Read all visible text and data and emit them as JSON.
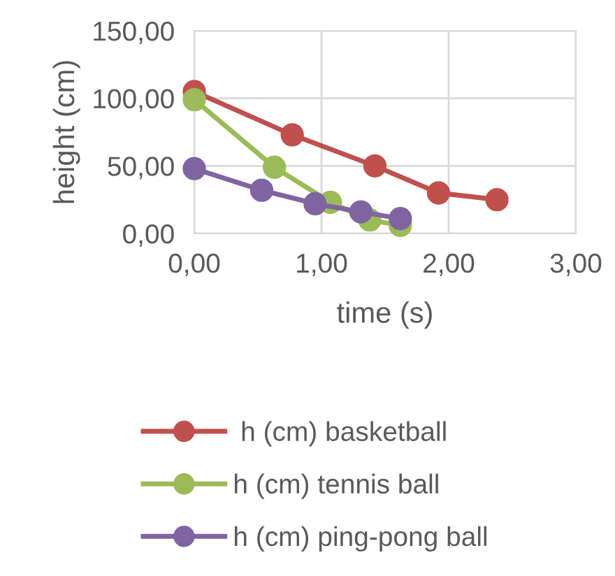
{
  "chart_data": {
    "type": "line",
    "xlabel": "time (s)",
    "ylabel": "height (cm)",
    "xlim": [
      0,
      3
    ],
    "xticks": [
      {
        "value": 0,
        "label": "0,00"
      },
      {
        "value": 1,
        "label": "1,00"
      },
      {
        "value": 2,
        "label": "2,00"
      },
      {
        "value": 3,
        "label": "3,00"
      }
    ],
    "ylim": [
      0,
      150
    ],
    "yticks": [
      {
        "value": 0,
        "label": "0,00"
      },
      {
        "value": 50,
        "label": "50,00"
      },
      {
        "value": 100,
        "label": "100,00"
      },
      {
        "value": 150,
        "label": "150,00"
      }
    ],
    "grid": true,
    "legend": "bottom",
    "marker": "circle",
    "line_style": "solid",
    "series": [
      {
        "name": " h (cm) basketball",
        "color": "#c0504d",
        "x": [
          0,
          0.77,
          1.42,
          1.92,
          2.38
        ],
        "values": [
          105,
          73,
          50,
          30,
          25
        ]
      },
      {
        "name": "h (cm) tennis ball",
        "color": "#9bbb59",
        "x": [
          0,
          0.63,
          1.07,
          1.38,
          1.62
        ],
        "values": [
          99,
          49,
          23,
          10,
          6
        ]
      },
      {
        "name": "h (cm) ping-pong ball",
        "color": "#8064a2",
        "x": [
          0,
          0.53,
          0.95,
          1.31,
          1.62
        ],
        "values": [
          48,
          32,
          22,
          16,
          11
        ]
      }
    ]
  }
}
